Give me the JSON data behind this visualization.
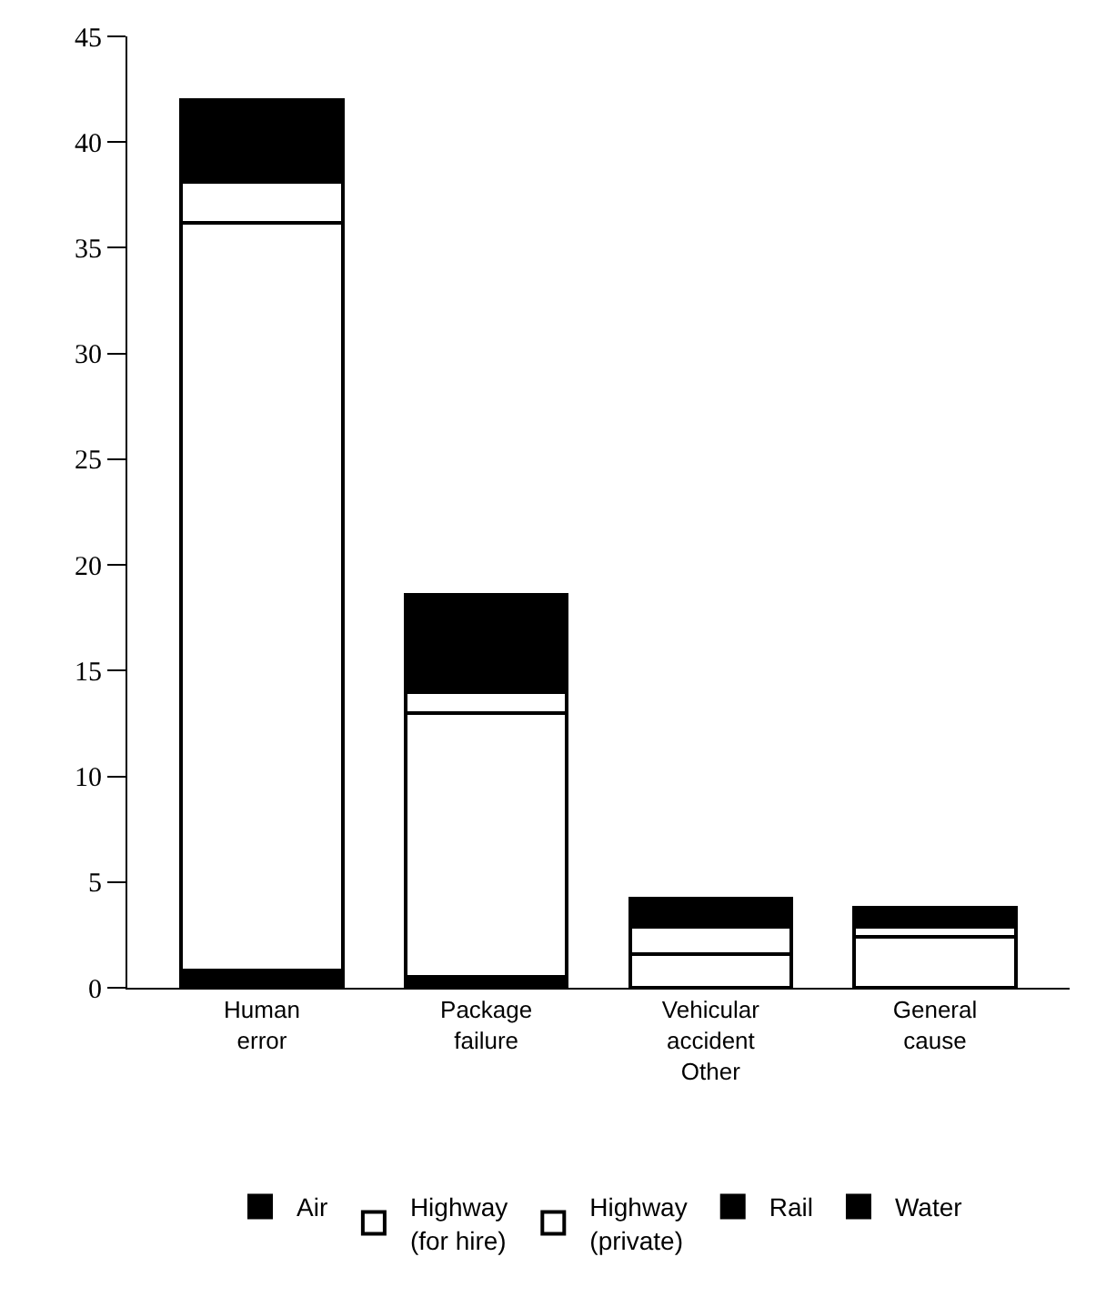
{
  "chart_data": {
    "type": "bar",
    "stacked": true,
    "categories": [
      "Human\nerror",
      "Package\nfailure",
      "Vehicular\naccident\nOther",
      "General\ncause"
    ],
    "series": [
      {
        "name": "Air",
        "color": "#000000",
        "values": [
          0.8,
          0.5,
          0,
          0
        ]
      },
      {
        "name": "Highway\n(for hire)",
        "color": "#ffffff",
        "values": [
          35.4,
          12.5,
          1.6,
          2.4
        ]
      },
      {
        "name": "Highway\n(private)",
        "color": "#ffffff",
        "values": [
          1.9,
          1.0,
          1.3,
          0.5
        ]
      },
      {
        "name": "Rail",
        "color": "#000000",
        "values": [
          3.6,
          4.6,
          1.3,
          0.9
        ]
      },
      {
        "name": "Water",
        "color": "#000000",
        "values": [
          0.3,
          0,
          0,
          0
        ]
      }
    ],
    "ylim": [
      0,
      45
    ],
    "yticks": [
      0,
      5,
      10,
      15,
      20,
      25,
      30,
      35,
      40,
      45
    ],
    "legend": "bottom"
  }
}
